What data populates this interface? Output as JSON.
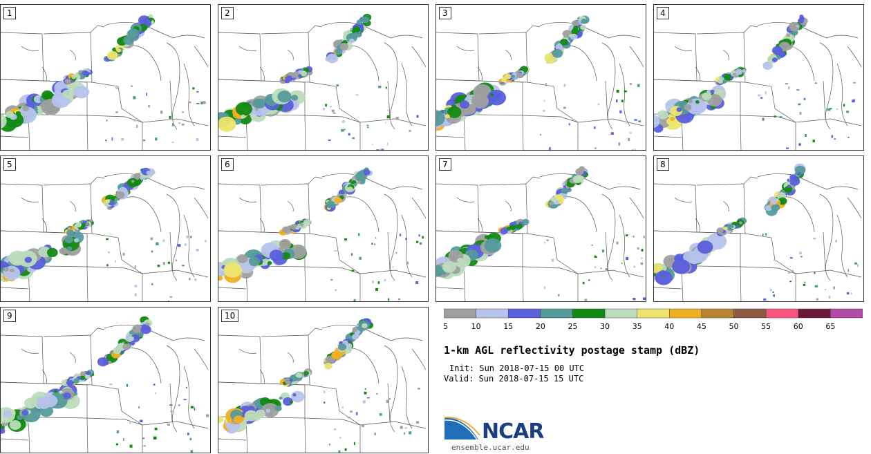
{
  "panels": [
    {
      "label": "1"
    },
    {
      "label": "2"
    },
    {
      "label": "3"
    },
    {
      "label": "4"
    },
    {
      "label": "5"
    },
    {
      "label": "6"
    },
    {
      "label": "7"
    },
    {
      "label": "8"
    },
    {
      "label": "9"
    },
    {
      "label": "10"
    }
  ],
  "colorbar": {
    "levels": [
      "5",
      "10",
      "15",
      "20",
      "25",
      "30",
      "35",
      "40",
      "45",
      "50",
      "55",
      "60",
      "65"
    ],
    "colors": [
      "#a0a0a0",
      "#b7c3ec",
      "#5a5fdc",
      "#559a9b",
      "#118a11",
      "#bcdcbc",
      "#ede56b",
      "#f1b021",
      "#b98431",
      "#8d5a3f",
      "#f75681",
      "#6b1a3a",
      "#b24aa8"
    ]
  },
  "title": "1-km AGL reflectivity postage stamp (dBZ)",
  "init": "Init: Sun 2018-07-15 00 UTC",
  "valid": "Valid: Sun 2018-07-15 15 UTC",
  "logo": {
    "text": "NCAR",
    "url": "ensemble.ucar.edu",
    "icon": "ncar-logo-icon"
  }
}
